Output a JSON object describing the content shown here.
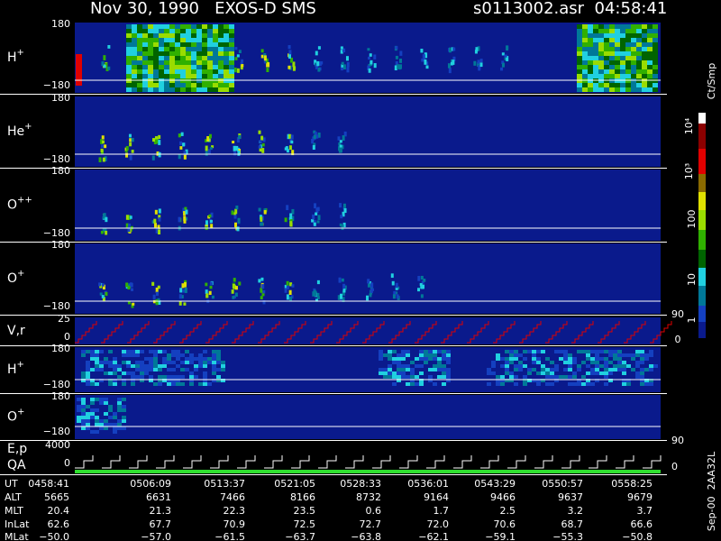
{
  "header": {
    "title": "Nov 30, 1990   EXOS-D SMS",
    "file": "s0113002.asr  04:58:41"
  },
  "panels": [
    {
      "label": "H",
      "sup": "+",
      "ticks": [
        "180",
        "−180"
      ]
    },
    {
      "label": "He",
      "sup": "+",
      "ticks": [
        "180",
        "−180"
      ]
    },
    {
      "label": "O",
      "sup": "++",
      "ticks": [
        "180",
        "−180"
      ]
    },
    {
      "label": "O",
      "sup": "+",
      "ticks": [
        "180",
        "−180"
      ]
    },
    {
      "label": "V,r",
      "ticks": [
        "25",
        "0"
      ],
      "right": [
        "90"
      ]
    },
    {
      "label": "H",
      "sup": "+",
      "ticks": [
        "180",
        "−180"
      ]
    },
    {
      "label": "O",
      "sup": "+",
      "ticks": [
        "180",
        "−180"
      ]
    },
    {
      "label": "E,p",
      "label2": "QA",
      "ticks": [
        "4000",
        "0"
      ],
      "right": [
        "90",
        "0"
      ]
    }
  ],
  "colorbar": {
    "unit": "Ct/Smp",
    "labels": [
      "10⁴",
      "10³",
      "100",
      "10",
      "1",
      "0"
    ]
  },
  "footer_note": "Sep-00  2AA32L",
  "table": {
    "rows": [
      [
        "UT",
        "0458:41",
        "0506:09",
        "0513:37",
        "0521:05",
        "0528:33",
        "0536:01",
        "0543:29",
        "0550:57",
        "0558:25"
      ],
      [
        "ALT",
        "5665",
        "6631",
        "7466",
        "8166",
        "8732",
        "9164",
        "9466",
        "9637",
        "9679"
      ],
      [
        "MLT",
        "20.4",
        "21.3",
        "22.3",
        "23.5",
        "0.6",
        "1.7",
        "2.5",
        "3.2",
        "3.7"
      ],
      [
        "InLat",
        "62.6",
        "67.7",
        "70.9",
        "72.5",
        "72.7",
        "72.0",
        "70.6",
        "68.7",
        "66.6"
      ],
      [
        "MLat",
        "−50.0",
        "−57.0",
        "−61.5",
        "−63.7",
        "−63.8",
        "−62.1",
        "−59.1",
        "−55.3",
        "−50.8"
      ]
    ]
  }
}
